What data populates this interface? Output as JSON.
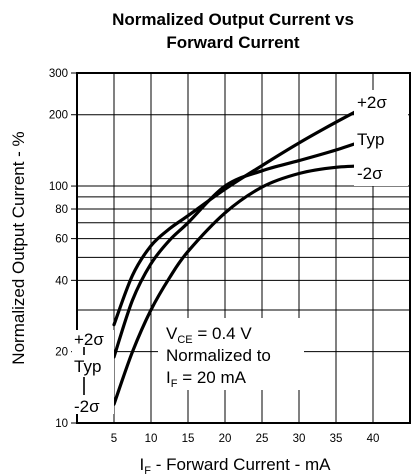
{
  "chart_data": {
    "type": "line",
    "title_line1": "Normalized Output Current vs",
    "title_line2": "Forward Current",
    "xlabel_main": "I",
    "xlabel_sub": "F",
    "xlabel_rest": " - Forward Current - mA",
    "ylabel": "Normalized Output Current - %",
    "xlim": [
      0,
      45
    ],
    "ylim": [
      10,
      300
    ],
    "yscale": "log",
    "grid": true,
    "x_ticks": [
      5,
      10,
      15,
      20,
      25,
      30,
      35,
      40
    ],
    "x_tick_labels": [
      "5",
      "10",
      "15",
      "20",
      "25",
      "30",
      "35",
      "40"
    ],
    "y_ticks": [
      10,
      20,
      40,
      60,
      80,
      100,
      200,
      300
    ],
    "y_tick_labels": [
      "10",
      "20",
      "40",
      "60",
      "80",
      "100",
      "200",
      "300"
    ],
    "series": [
      {
        "name": "+2σ",
        "x": [
          5,
          7.5,
          10,
          12.5,
          15,
          20,
          25,
          30,
          35,
          40
        ],
        "y": [
          26,
          42,
          56,
          66,
          75,
          97,
          122,
          152,
          186,
          225
        ]
      },
      {
        "name": "Typ",
        "x": [
          5,
          7.5,
          10,
          12.5,
          15,
          20,
          25,
          30,
          35,
          40
        ],
        "y": [
          19,
          33,
          47,
          59,
          70,
          100,
          116,
          128,
          142,
          160
        ]
      },
      {
        "name": "-2σ",
        "x": [
          5,
          7.5,
          10,
          12.5,
          15,
          20,
          25,
          30,
          35,
          40
        ],
        "y": [
          12,
          20,
          30,
          41,
          53,
          77,
          99,
          113,
          120,
          122
        ]
      }
    ],
    "left_labels": [
      "+2σ",
      "Typ",
      "-2σ"
    ],
    "annotation": {
      "line1_main": "V",
      "line1_sub": "CE",
      "line1_rest": " = 0.4 V",
      "line2": "Normalized to",
      "line3_main": "I",
      "line3_sub": "F",
      "line3_rest": " = 20 mA"
    },
    "legend_placement": "inline"
  }
}
